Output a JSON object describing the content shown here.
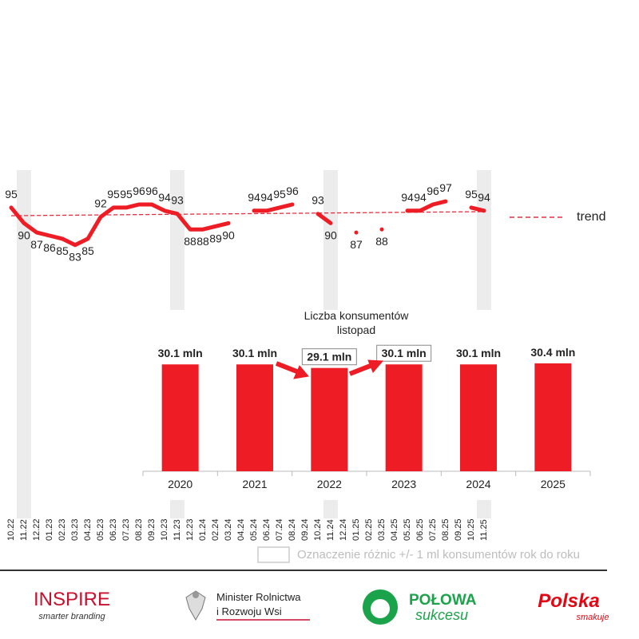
{
  "chart_data": [
    {
      "type": "line",
      "categories": [
        "10.22",
        "11.22",
        "12.22",
        "01.23",
        "02.23",
        "03.23",
        "04.23",
        "05.23",
        "06.23",
        "07.23",
        "08.23",
        "09.23",
        "10.23",
        "11.23",
        "12.23",
        "01.24",
        "02.24",
        "03.24",
        "04.24",
        "05.24",
        "06.24",
        "07.24",
        "08.24",
        "09.24",
        "10.24",
        "11.24",
        "12.24",
        "01.25",
        "02.25",
        "03.25",
        "04.25",
        "05.25",
        "06.25",
        "07.25",
        "08.25",
        "09.25",
        "10.25",
        "11.25"
      ],
      "series": [
        {
          "color": "#ee1c25",
          "values": [
            95,
            90,
            87,
            86,
            85,
            83,
            85,
            92,
            95,
            95,
            96,
            96,
            94,
            93,
            88,
            88,
            89,
            90,
            null,
            94,
            94,
            95,
            96,
            null,
            93,
            90,
            null,
            87,
            null,
            88,
            null,
            94,
            94,
            96,
            97,
            null,
            95,
            94
          ]
        }
      ],
      "trend": {
        "name": "trend",
        "color": "#e03040",
        "values": [
          92.4,
          93.7
        ]
      },
      "highlight_categories": [
        1,
        13,
        25,
        37
      ],
      "ylim": [
        80,
        100
      ]
    },
    {
      "type": "bar",
      "title": "Liczba konsumentów listopad",
      "categories": [
        "2020",
        "2021",
        "2022",
        "2023",
        "2024",
        "2025"
      ],
      "values": [
        30.1,
        30.1,
        29.1,
        30.1,
        30.1,
        30.4
      ],
      "value_labels": [
        "30.1 mln",
        "30.1 mln",
        "29.1 mln",
        "30.1 mln",
        "30.1 mln",
        "30.4 mln"
      ],
      "boxed": [
        2,
        3
      ],
      "color": "#ee1c25",
      "ylim": [
        0,
        45
      ]
    }
  ],
  "footer": {
    "legend_note": "Oznaczenie różnic +/- 1 ml konsumentów rok do roku",
    "logos": [
      "INSPIRE",
      "smarter branding",
      "Minister Rolnictwa",
      "i Rozwoju Wsi",
      "POŁOWA",
      "sukcesu",
      "Polska",
      "smakuje"
    ]
  }
}
